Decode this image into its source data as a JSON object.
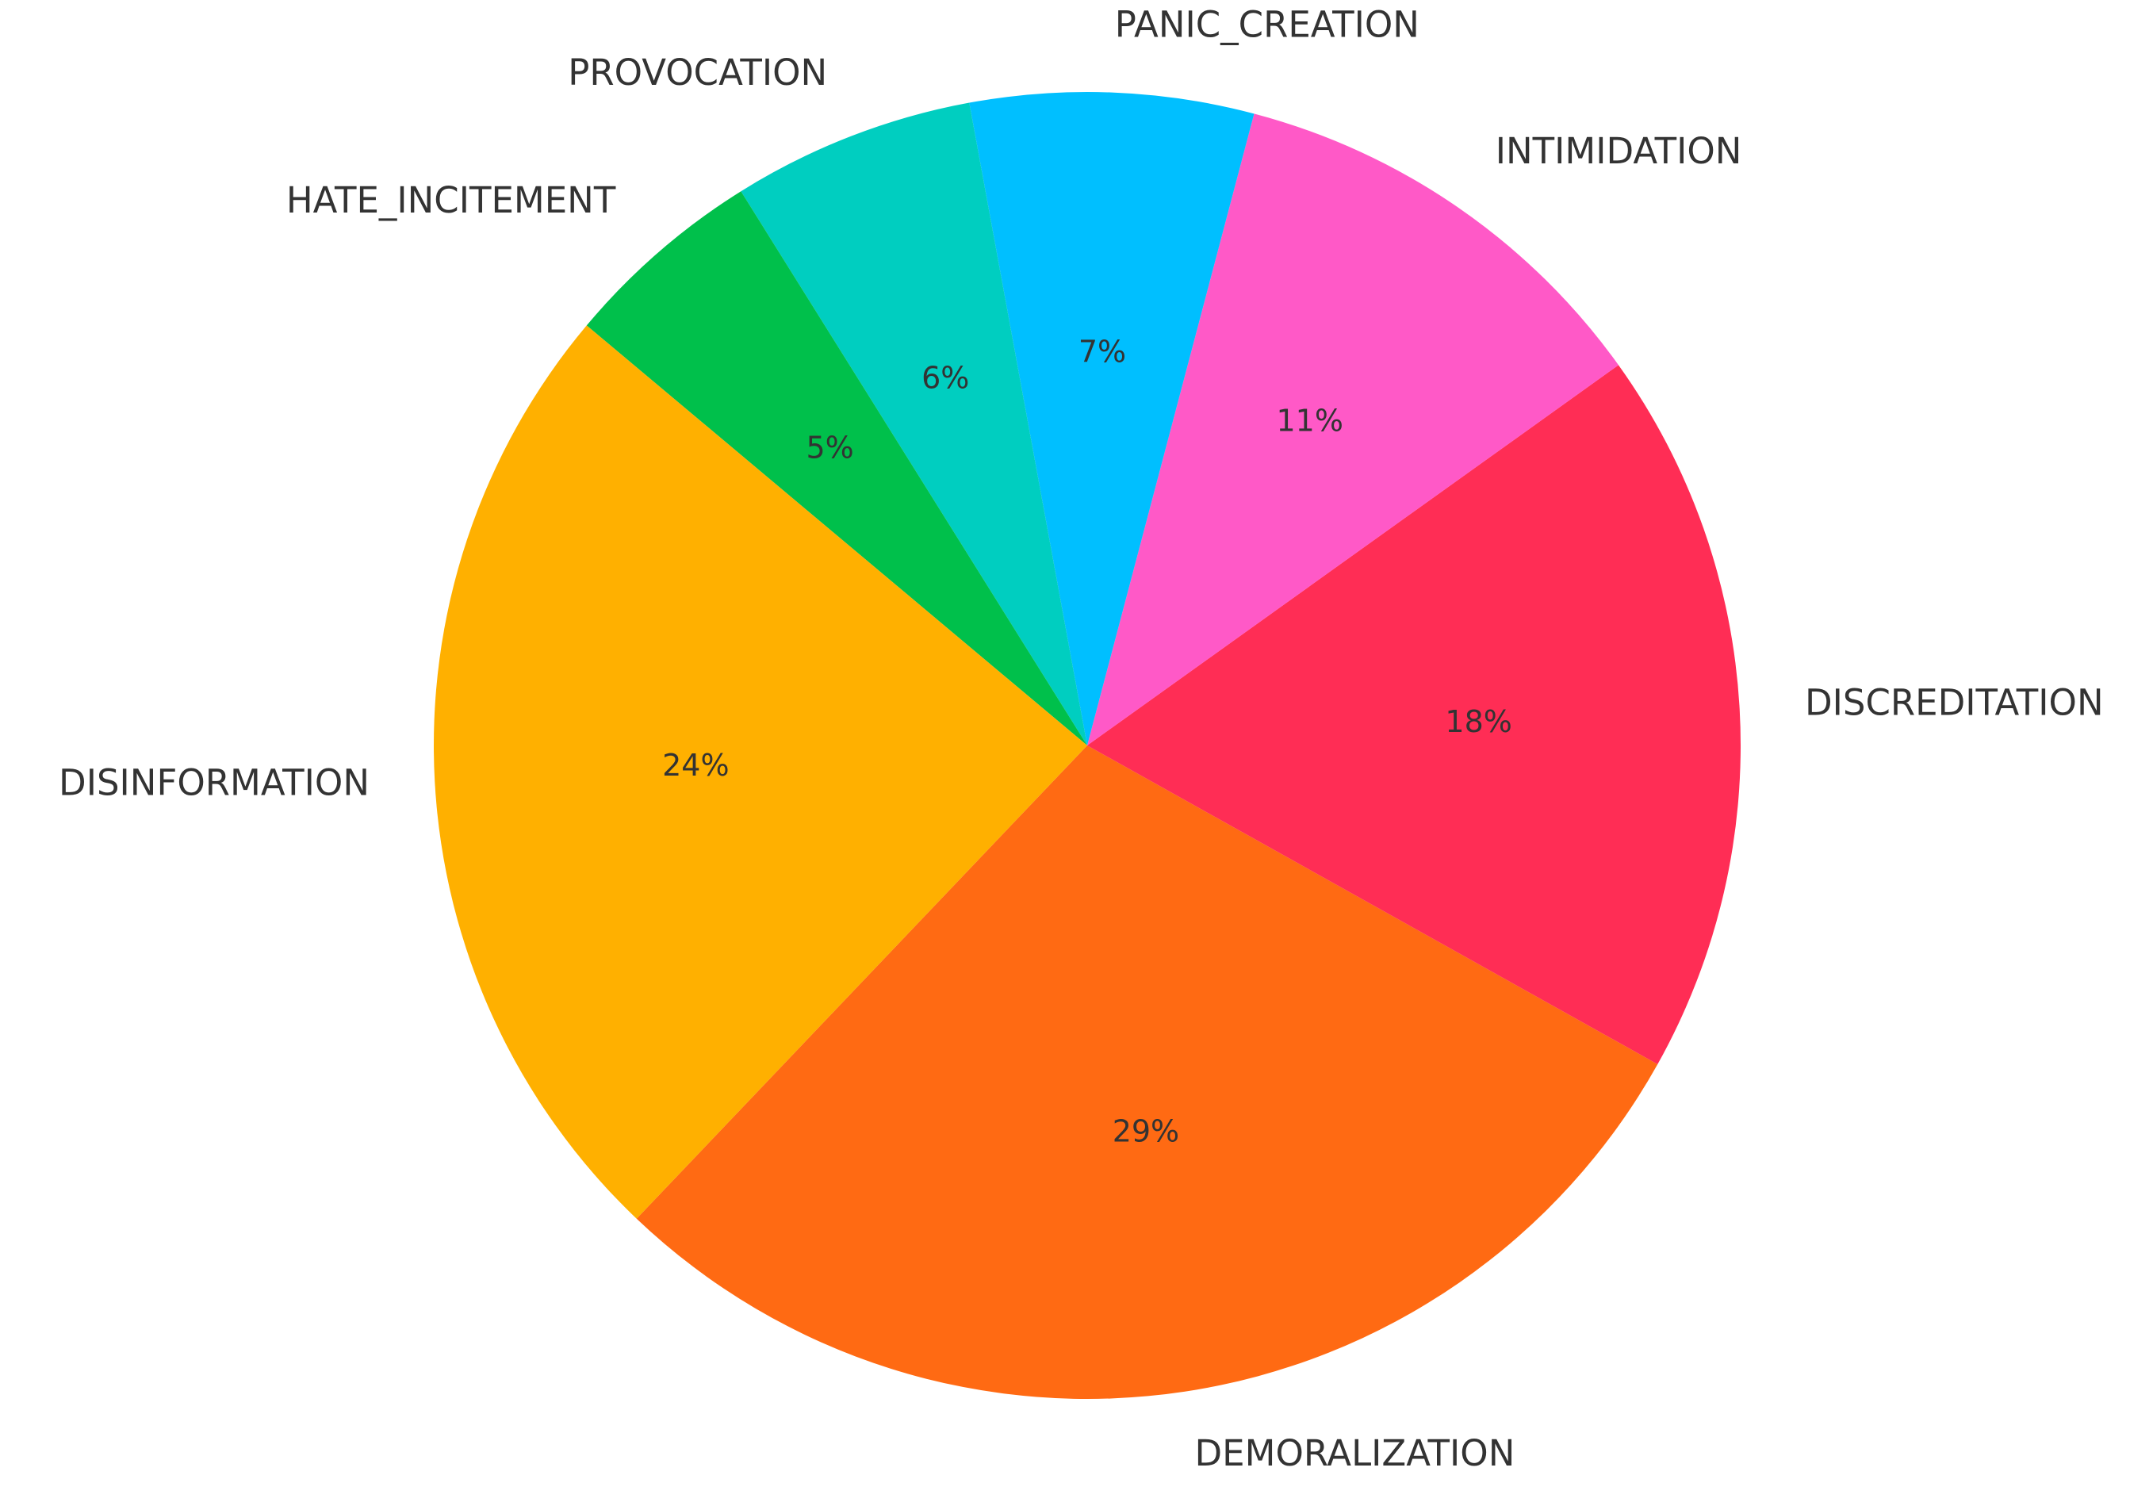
{
  "chart_data": {
    "type": "pie",
    "categories": [
      "DEMORALIZATION",
      "DISCREDITATION",
      "INTIMIDATION",
      "PANIC_CREATION",
      "PROVOCATION",
      "HATE_INCITEMENT",
      "DISINFORMATION"
    ],
    "values": [
      29,
      18,
      11,
      7,
      6,
      5,
      24
    ],
    "value_labels": [
      "29%",
      "18%",
      "11%",
      "7%",
      "6%",
      "5%",
      "24%"
    ],
    "colors": [
      "#ff6a13",
      "#ff2d55",
      "#ff59c7",
      "#00bfff",
      "#00cec0",
      "#00c04b",
      "#ffb000"
    ]
  }
}
